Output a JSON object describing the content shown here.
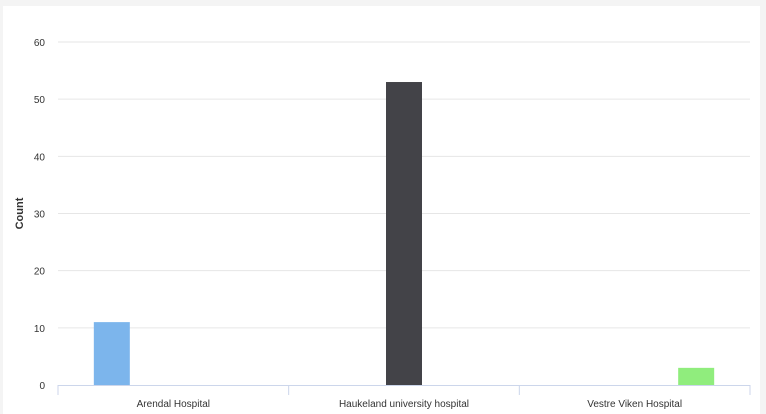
{
  "chart_data": {
    "type": "bar",
    "title": "",
    "xlabel": "",
    "ylabel": "Count",
    "categories": [
      "Arendal Hospital",
      "Haukeland university hospital",
      "Vestre Viken Hospital"
    ],
    "series": [
      {
        "values": [
          11,
          0,
          0
        ],
        "color": "#7cb5ec"
      },
      {
        "values": [
          0,
          53,
          0
        ],
        "color": "#434348"
      },
      {
        "values": [
          0,
          0,
          3
        ],
        "color": "#90ed7d"
      }
    ],
    "ylim": [
      0,
      60
    ],
    "yticks": [
      0,
      10,
      20,
      30,
      40,
      50,
      60
    ],
    "grid": true,
    "legend": "none"
  }
}
